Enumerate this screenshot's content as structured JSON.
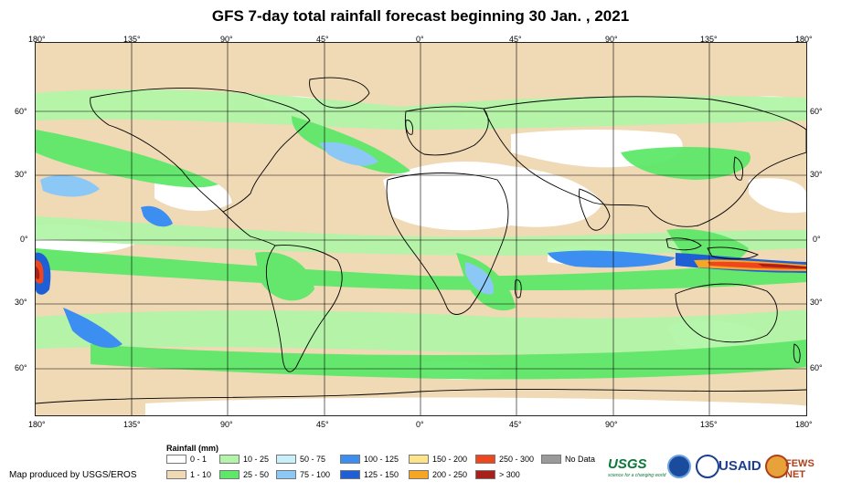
{
  "title": "GFS 7-day total rainfall forecast beginning 30 Jan. , 2021",
  "lon_labels": [
    "180°",
    "135°",
    "90°",
    "45°",
    "0°",
    "45°",
    "90°",
    "135°",
    "180°"
  ],
  "lat_labels": [
    "60°",
    "30°",
    "0°",
    "30°",
    "60°"
  ],
  "legend": {
    "title": "Rainfall (mm)",
    "items": [
      {
        "label": "0 - 1",
        "color": "#ffffff"
      },
      {
        "label": "1 - 10",
        "color": "#f0d9b5"
      },
      {
        "label": "10 - 25",
        "color": "#b2f5a8"
      },
      {
        "label": "25 - 50",
        "color": "#5ee86a"
      },
      {
        "label": "50 - 75",
        "color": "#c8f0fa"
      },
      {
        "label": "75 - 100",
        "color": "#8cc8f5"
      },
      {
        "label": "100 - 125",
        "color": "#3c8ef0"
      },
      {
        "label": "125 - 150",
        "color": "#1f5fd6"
      },
      {
        "label": "150 - 200",
        "color": "#fde38a"
      },
      {
        "label": "200 - 250",
        "color": "#f5a623"
      },
      {
        "label": "250 - 300",
        "color": "#f0461e"
      },
      {
        "label": "> 300",
        "color": "#a8201a"
      },
      {
        "label": "No Data",
        "color": "#9a9a9a"
      }
    ]
  },
  "credit": "Map produced by USGS/EROS",
  "logos": {
    "usgs": "USGS",
    "usgs_tagline": "science for a changing world",
    "usaid": "USAID",
    "fews": "FEWS NET"
  }
}
